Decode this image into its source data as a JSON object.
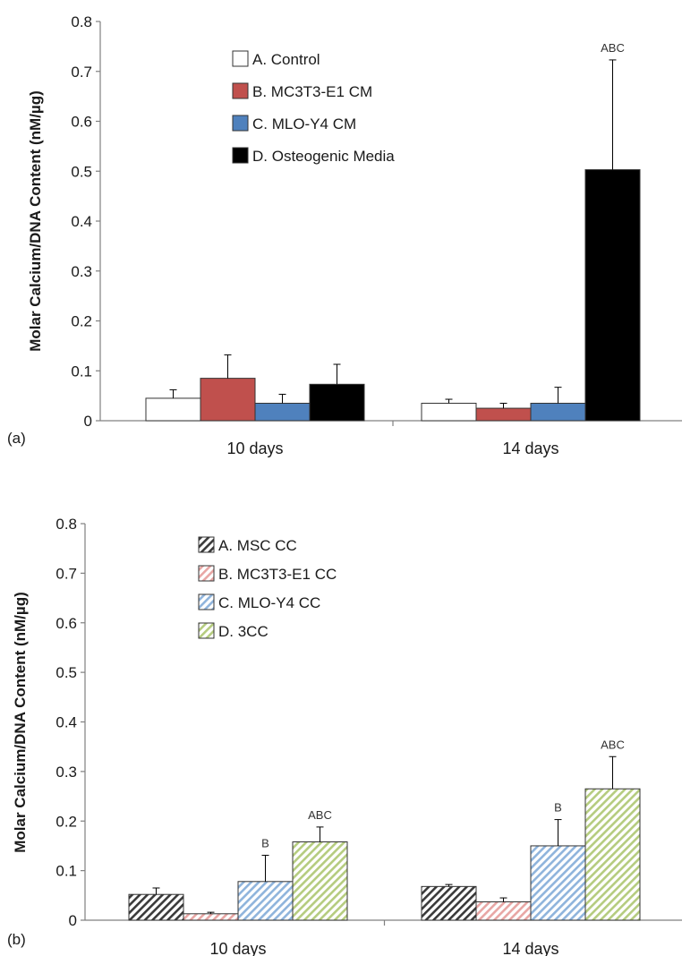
{
  "chart_data": [
    {
      "type": "bar",
      "panel_label": "(a)",
      "ylabel": "Molar Calcium/DNA Content (nM/µg)",
      "xlabel": "",
      "ylim": [
        0,
        0.8
      ],
      "yticks": [
        "0",
        "0.1",
        "0.2",
        "0.3",
        "0.4",
        "0.5",
        "0.6",
        "0.7",
        "0.8"
      ],
      "categories": [
        "10 days",
        "14 days"
      ],
      "legend_position": "top-left",
      "series": [
        {
          "name": "A. Control",
          "fill": "#ffffff",
          "hatch": false,
          "values": [
            0.045,
            0.035
          ],
          "errors": [
            0.017,
            0.008
          ],
          "annotations": [
            "",
            ""
          ]
        },
        {
          "name": "B. MC3T3-E1 CM",
          "fill": "#c0504d",
          "hatch": false,
          "values": [
            0.085,
            0.025
          ],
          "errors": [
            0.047,
            0.01
          ],
          "annotations": [
            "",
            ""
          ]
        },
        {
          "name": "C. MLO-Y4 CM",
          "fill": "#4f81bd",
          "hatch": false,
          "values": [
            0.035,
            0.035
          ],
          "errors": [
            0.018,
            0.032
          ],
          "annotations": [
            "",
            ""
          ]
        },
        {
          "name": "D. Osteogenic Media",
          "fill": "#000000",
          "hatch": false,
          "values": [
            0.073,
            0.503
          ],
          "errors": [
            0.04,
            0.22
          ],
          "annotations": [
            "",
            "ABC"
          ]
        }
      ]
    },
    {
      "type": "bar",
      "panel_label": "(b)",
      "ylabel": "Molar Calcium/DNA Content (nM/µg)",
      "xlabel": "",
      "ylim": [
        0,
        0.8
      ],
      "yticks": [
        "0",
        "0.1",
        "0.2",
        "0.3",
        "0.4",
        "0.5",
        "0.6",
        "0.7",
        "0.8"
      ],
      "categories": [
        "10 days",
        "14 days"
      ],
      "legend_position": "top-left",
      "series": [
        {
          "name": "A. MSC CC",
          "fill": "#3a3a3a",
          "hatch": true,
          "values": [
            0.052,
            0.068
          ],
          "errors": [
            0.013,
            0.004
          ],
          "annotations": [
            "",
            ""
          ]
        },
        {
          "name": "B. MC3T3-E1 CC",
          "fill": "#e8a6a4",
          "hatch": true,
          "values": [
            0.013,
            0.037
          ],
          "errors": [
            0.003,
            0.008
          ],
          "annotations": [
            "",
            ""
          ]
        },
        {
          "name": "C. MLO-Y4 CC",
          "fill": "#8fb4dc",
          "hatch": true,
          "values": [
            0.078,
            0.15
          ],
          "errors": [
            0.053,
            0.053
          ],
          "annotations": [
            "B",
            "B"
          ]
        },
        {
          "name": "D. 3CC",
          "fill": "#b5cc7f",
          "hatch": true,
          "values": [
            0.158,
            0.265
          ],
          "errors": [
            0.03,
            0.065
          ],
          "annotations": [
            "ABC",
            "ABC"
          ]
        }
      ]
    }
  ]
}
